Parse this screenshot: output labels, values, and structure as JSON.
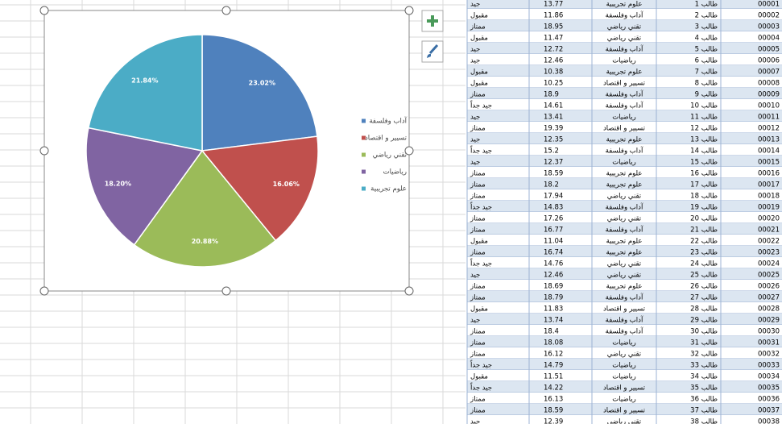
{
  "chart_data": {
    "type": "pie",
    "categories": [
      "آداب وفلسفة",
      "تسيير و اقتصاد",
      "تقني رياضي",
      "رياضيات",
      "علوم تجريبية"
    ],
    "values": [
      23.02,
      16.06,
      20.88,
      18.2,
      21.84
    ],
    "value_labels": [
      "23.02%",
      "16.06%",
      "20.88%",
      "18.20%",
      "21.84%"
    ],
    "colors": [
      "#4f81bd",
      "#c0504d",
      "#9bbb59",
      "#8064a2",
      "#4bacc6"
    ],
    "legend": "right"
  },
  "table": {
    "rows": [
      [
        "00001",
        "طالب 1",
        "علوم تجريبية",
        13.77,
        "جيد"
      ],
      [
        "00002",
        "طالب 2",
        "آداب وفلسفة",
        11.86,
        "مقبول"
      ],
      [
        "00003",
        "طالب 3",
        "تقني رياضي",
        18.95,
        "ممتاز"
      ],
      [
        "00004",
        "طالب 4",
        "تقني رياضي",
        11.47,
        "مقبول"
      ],
      [
        "00005",
        "طالب 5",
        "آداب وفلسفة",
        12.72,
        "جيد"
      ],
      [
        "00006",
        "طالب 6",
        "رياضيات",
        12.46,
        "جيد"
      ],
      [
        "00007",
        "طالب 7",
        "علوم تجريبية",
        10.38,
        "مقبول"
      ],
      [
        "00008",
        "طالب 8",
        "تسيير و اقتصاد",
        10.25,
        "مقبول"
      ],
      [
        "00009",
        "طالب 9",
        "آداب وفلسفة",
        18.9,
        "ممتاز"
      ],
      [
        "00010",
        "طالب 10",
        "آداب وفلسفة",
        14.61,
        "جيد جداً"
      ],
      [
        "00011",
        "طالب 11",
        "رياضيات",
        13.41,
        "جيد"
      ],
      [
        "00012",
        "طالب 12",
        "تسيير و اقتصاد",
        19.39,
        "ممتاز"
      ],
      [
        "00013",
        "طالب 13",
        "علوم تجريبية",
        12.35,
        "جيد"
      ],
      [
        "00014",
        "طالب 14",
        "آداب وفلسفة",
        15.2,
        "جيد جداً"
      ],
      [
        "00015",
        "طالب 15",
        "رياضيات",
        12.37,
        "جيد"
      ],
      [
        "00016",
        "طالب 16",
        "علوم تجريبية",
        18.59,
        "ممتاز"
      ],
      [
        "00017",
        "طالب 17",
        "علوم تجريبية",
        18.2,
        "ممتاز"
      ],
      [
        "00018",
        "طالب 18",
        "تقني رياضي",
        17.94,
        "ممتاز"
      ],
      [
        "00019",
        "طالب 19",
        "آداب وفلسفة",
        14.83,
        "جيد جداً"
      ],
      [
        "00020",
        "طالب 20",
        "تقني رياضي",
        17.26,
        "ممتاز"
      ],
      [
        "00021",
        "طالب 21",
        "آداب وفلسفة",
        16.77,
        "ممتاز"
      ],
      [
        "00022",
        "طالب 22",
        "علوم تجريبية",
        11.04,
        "مقبول"
      ],
      [
        "00023",
        "طالب 23",
        "علوم تجريبية",
        16.74,
        "ممتاز"
      ],
      [
        "00024",
        "طالب 24",
        "تقني رياضي",
        14.76,
        "جيد جداً"
      ],
      [
        "00025",
        "طالب 25",
        "تقني رياضي",
        12.46,
        "جيد"
      ],
      [
        "00026",
        "طالب 26",
        "علوم تجريبية",
        18.69,
        "ممتاز"
      ],
      [
        "00027",
        "طالب 27",
        "آداب وفلسفة",
        18.79,
        "ممتاز"
      ],
      [
        "00028",
        "طالب 28",
        "تسيير و اقتصاد",
        11.83,
        "مقبول"
      ],
      [
        "00029",
        "طالب 29",
        "آداب وفلسفة",
        13.74,
        "جيد"
      ],
      [
        "00030",
        "طالب 30",
        "آداب وفلسفة",
        18.4,
        "ممتاز"
      ],
      [
        "00031",
        "طالب 31",
        "رياضيات",
        18.08,
        "ممتاز"
      ],
      [
        "00032",
        "طالب 32",
        "تقني رياضي",
        16.12,
        "ممتاز"
      ],
      [
        "00033",
        "طالب 33",
        "رياضيات",
        14.79,
        "جيد جداً"
      ],
      [
        "00034",
        "طالب 34",
        "رياضيات",
        11.51,
        "مقبول"
      ],
      [
        "00035",
        "طالب 35",
        "تسيير و اقتصاد",
        14.22,
        "جيد جداً"
      ],
      [
        "00036",
        "طالب 36",
        "رياضيات",
        16.13,
        "ممتاز"
      ],
      [
        "00037",
        "طالب 37",
        "تسيير و اقتصاد",
        18.59,
        "ممتاز"
      ],
      [
        "00038",
        "طالب 38",
        "تقني رياضي",
        12.39,
        "جيد"
      ]
    ]
  }
}
